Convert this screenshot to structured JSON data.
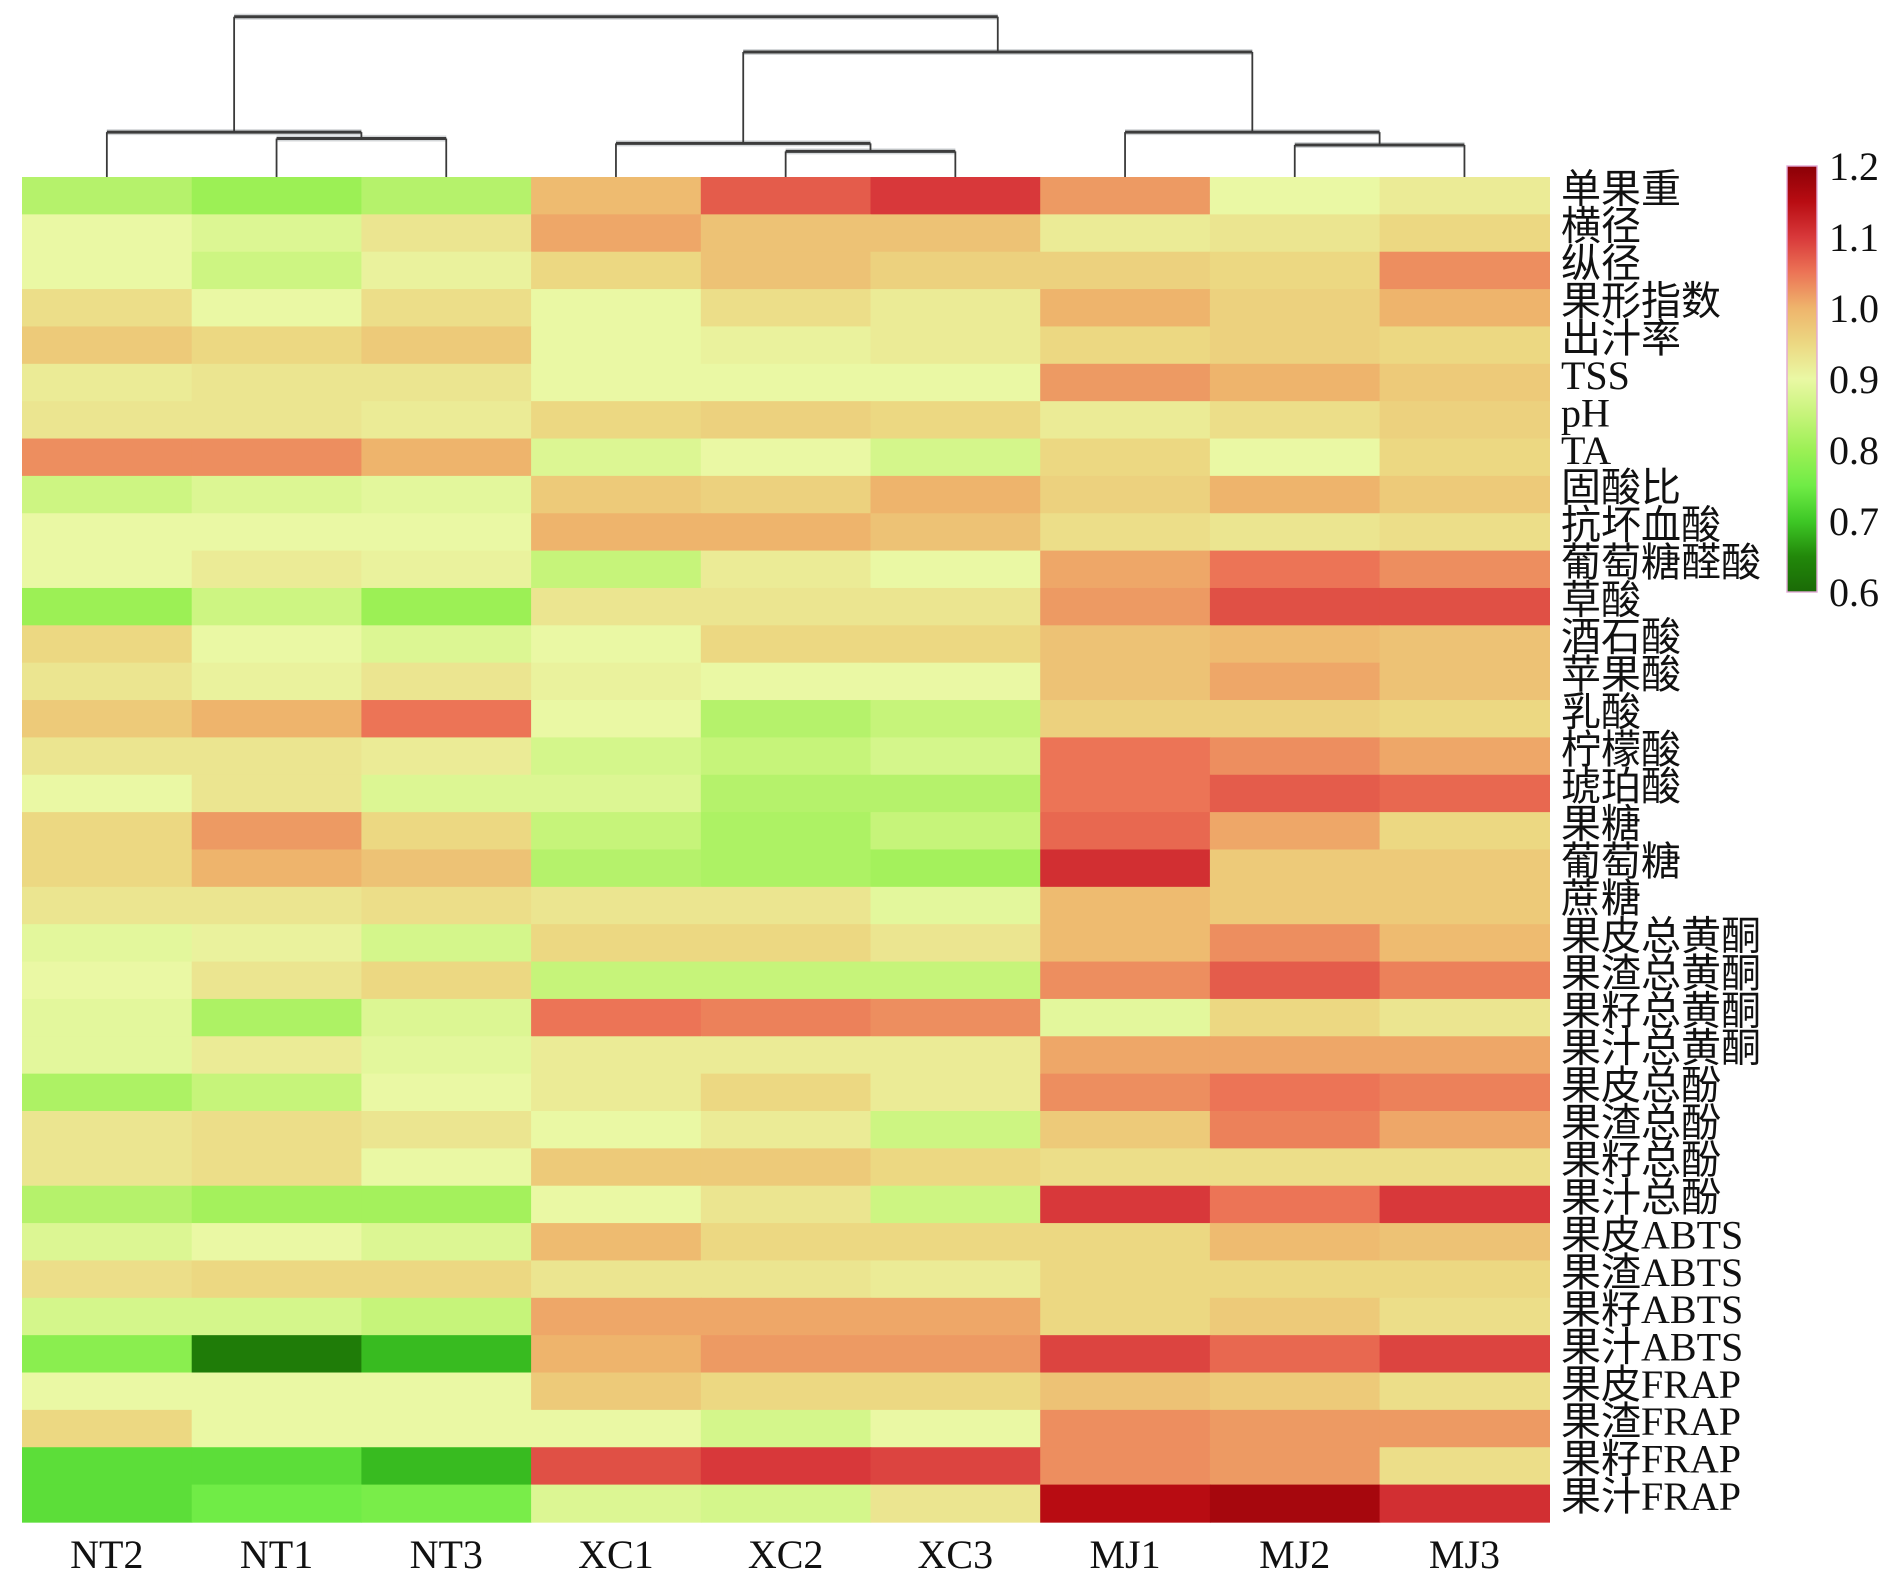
{
  "chart_data": {
    "type": "heatmap",
    "columns": [
      "NT2",
      "NT1",
      "NT3",
      "XC1",
      "XC2",
      "XC3",
      "MJ1",
      "MJ2",
      "MJ3"
    ],
    "rows": [
      "单果重",
      "横径",
      "纵径",
      "果形指数",
      "出汁率",
      "TSS",
      "pH",
      "TA",
      "固酸比",
      "抗坏血酸",
      "葡萄糖醛酸",
      "草酸",
      "酒石酸",
      "苹果酸",
      "乳酸",
      "柠檬酸",
      "琥珀酸",
      "果糖",
      "葡萄糖",
      "蔗糖",
      "果皮总黄酮",
      "果渣总黄酮",
      "果籽总黄酮",
      "果汁总黄酮",
      "果皮总酚",
      "果渣总酚",
      "果籽总酚",
      "果汁总酚",
      "果皮ABTS",
      "果渣ABTS",
      "果籽ABTS",
      "果汁ABTS",
      "果皮FRAP",
      "果渣FRAP",
      "果籽FRAP",
      "果汁FRAP"
    ],
    "values": [
      [
        0.83,
        0.8,
        0.83,
        0.99,
        1.07,
        1.1,
        1.02,
        0.9,
        0.92
      ],
      [
        0.9,
        0.88,
        0.93,
        1.01,
        0.98,
        0.98,
        0.92,
        0.93,
        0.95
      ],
      [
        0.9,
        0.86,
        0.91,
        0.95,
        0.98,
        0.96,
        0.96,
        0.95,
        1.03
      ],
      [
        0.94,
        0.9,
        0.94,
        0.9,
        0.94,
        0.92,
        1.0,
        0.96,
        1.0
      ],
      [
        0.97,
        0.95,
        0.97,
        0.9,
        0.91,
        0.92,
        0.95,
        0.96,
        0.95
      ],
      [
        0.92,
        0.93,
        0.93,
        0.9,
        0.9,
        0.9,
        1.02,
        1.0,
        0.97
      ],
      [
        0.93,
        0.93,
        0.92,
        0.95,
        0.96,
        0.95,
        0.92,
        0.94,
        0.96
      ],
      [
        1.03,
        1.03,
        1.0,
        0.88,
        0.9,
        0.87,
        0.95,
        0.9,
        0.95
      ],
      [
        0.86,
        0.88,
        0.89,
        0.97,
        0.96,
        1.0,
        0.96,
        1.0,
        0.97
      ],
      [
        0.9,
        0.9,
        0.9,
        1.0,
        1.0,
        0.98,
        0.94,
        0.93,
        0.94
      ],
      [
        0.9,
        0.92,
        0.91,
        0.85,
        0.92,
        0.9,
        1.01,
        1.05,
        1.03
      ],
      [
        0.8,
        0.86,
        0.8,
        0.93,
        0.93,
        0.93,
        1.02,
        1.08,
        1.08
      ],
      [
        0.95,
        0.9,
        0.88,
        0.9,
        0.95,
        0.95,
        0.98,
        0.99,
        0.98
      ],
      [
        0.93,
        0.91,
        0.93,
        0.91,
        0.9,
        0.9,
        0.98,
        1.01,
        0.98
      ],
      [
        0.97,
        1.0,
        1.05,
        0.9,
        0.83,
        0.85,
        0.96,
        0.96,
        0.95
      ],
      [
        0.93,
        0.93,
        0.92,
        0.87,
        0.85,
        0.87,
        1.05,
        1.03,
        1.01
      ],
      [
        0.9,
        0.93,
        0.88,
        0.88,
        0.83,
        0.83,
        1.05,
        1.07,
        1.06
      ],
      [
        0.95,
        1.02,
        0.95,
        0.85,
        0.82,
        0.85,
        1.06,
        1.01,
        0.95
      ],
      [
        0.95,
        1.0,
        0.98,
        0.83,
        0.82,
        0.81,
        1.11,
        0.97,
        0.97
      ],
      [
        0.93,
        0.93,
        0.94,
        0.93,
        0.93,
        0.89,
        0.99,
        0.97,
        0.97
      ],
      [
        0.89,
        0.91,
        0.87,
        0.95,
        0.95,
        0.93,
        0.99,
        1.03,
        0.99
      ],
      [
        0.9,
        0.93,
        0.95,
        0.85,
        0.85,
        0.85,
        1.03,
        1.07,
        1.04
      ],
      [
        0.89,
        0.82,
        0.88,
        1.05,
        1.04,
        1.03,
        0.89,
        0.95,
        0.93
      ],
      [
        0.89,
        0.92,
        0.89,
        0.92,
        0.92,
        0.92,
        1.01,
        1.01,
        1.01
      ],
      [
        0.82,
        0.85,
        0.9,
        0.92,
        0.95,
        0.92,
        1.03,
        1.05,
        1.04
      ],
      [
        0.93,
        0.94,
        0.93,
        0.9,
        0.92,
        0.86,
        0.97,
        1.04,
        1.01
      ],
      [
        0.93,
        0.94,
        0.9,
        0.97,
        0.97,
        0.95,
        0.94,
        0.94,
        0.94
      ],
      [
        0.83,
        0.81,
        0.81,
        0.9,
        0.93,
        0.86,
        1.1,
        1.05,
        1.1
      ],
      [
        0.88,
        0.9,
        0.88,
        0.99,
        0.95,
        0.95,
        0.95,
        0.99,
        0.98
      ],
      [
        0.94,
        0.95,
        0.95,
        0.93,
        0.93,
        0.92,
        0.95,
        0.95,
        0.95
      ],
      [
        0.87,
        0.87,
        0.85,
        1.01,
        1.01,
        1.01,
        0.95,
        0.97,
        0.94
      ],
      [
        0.78,
        0.63,
        0.69,
        1.0,
        1.02,
        1.02,
        1.09,
        1.06,
        1.09
      ],
      [
        0.9,
        0.9,
        0.9,
        0.97,
        0.95,
        0.95,
        0.98,
        0.97,
        0.94
      ],
      [
        0.95,
        0.9,
        0.9,
        0.9,
        0.87,
        0.9,
        1.03,
        1.02,
        1.02
      ],
      [
        0.73,
        0.73,
        0.69,
        1.08,
        1.1,
        1.09,
        1.03,
        1.02,
        0.94
      ],
      [
        0.73,
        0.75,
        0.76,
        0.88,
        0.87,
        0.93,
        1.15,
        1.17,
        1.11
      ]
    ],
    "colorbar": {
      "position": "right",
      "min": 0.6,
      "max": 1.2,
      "ticks": [
        1.2,
        1.1,
        1.0,
        0.9,
        0.8,
        0.7,
        0.6
      ],
      "tick_labels": [
        "1.2",
        "1.1",
        "1.0",
        "0.9",
        "0.8",
        "0.7",
        "0.6"
      ],
      "colormap": [
        {
          "value": 0.6,
          "color": "#1a6a06"
        },
        {
          "value": 0.65,
          "color": "#22880a"
        },
        {
          "value": 0.7,
          "color": "#3ec826"
        },
        {
          "value": 0.75,
          "color": "#70ec46"
        },
        {
          "value": 0.8,
          "color": "#9cf055"
        },
        {
          "value": 0.85,
          "color": "#c6f47a"
        },
        {
          "value": 0.9,
          "color": "#eaf8a4"
        },
        {
          "value": 0.95,
          "color": "#ecd882"
        },
        {
          "value": 1.0,
          "color": "#eeb46c"
        },
        {
          "value": 1.05,
          "color": "#ec7456"
        },
        {
          "value": 1.1,
          "color": "#d8383a"
        },
        {
          "value": 1.15,
          "color": "#b80c12"
        },
        {
          "value": 1.2,
          "color": "#8b0006"
        }
      ]
    },
    "dendrogram": {
      "orientation": "top",
      "distance_units": "relative linkage distance (root = 100)",
      "merges": [
        {
          "id": "c1",
          "children": [
            "NT1",
            "NT3"
          ],
          "height": 24
        },
        {
          "id": "c2",
          "children": [
            "NT2",
            "c1"
          ],
          "height": 28
        },
        {
          "id": "c3",
          "children": [
            "XC2",
            "XC3"
          ],
          "height": 16
        },
        {
          "id": "c4",
          "children": [
            "XC1",
            "c3"
          ],
          "height": 21
        },
        {
          "id": "c5",
          "children": [
            "MJ2",
            "MJ3"
          ],
          "height": 20
        },
        {
          "id": "c6",
          "children": [
            "MJ1",
            "c5"
          ],
          "height": 28
        },
        {
          "id": "c7",
          "children": [
            "c4",
            "c6"
          ],
          "height": 78
        },
        {
          "id": "c8",
          "children": [
            "c2",
            "c7"
          ],
          "height": 100
        }
      ]
    }
  }
}
